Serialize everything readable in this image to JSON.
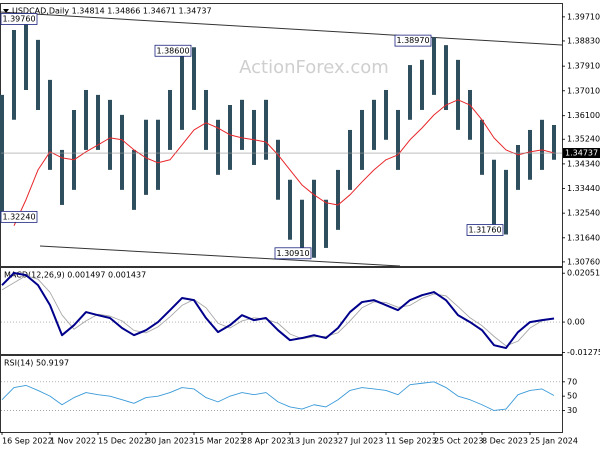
{
  "chart_data": [
    {
      "type": "ohlc",
      "title": "USDCAD,Daily 1.34814 1.34866 1.34671 1.34737",
      "watermark": "ActionForex.com",
      "color": "#2f4f5f",
      "high": [
        1.3686,
        1.3923,
        1.3976,
        1.3887,
        1.3741,
        1.3485,
        1.3631,
        1.3704,
        1.3686,
        1.3668,
        1.3613,
        1.3485,
        1.3595,
        1.3595,
        1.3704,
        1.3832,
        1.386,
        1.3704,
        1.3595,
        1.3649,
        1.3668,
        1.3631,
        1.3668,
        1.3522,
        1.3376,
        1.3303,
        1.3376,
        1.3303,
        1.3412,
        1.3558,
        1.3631,
        1.3668,
        1.3704,
        1.3631,
        1.3795,
        1.3814,
        1.3897,
        1.3868,
        1.3814,
        1.3704,
        1.3595,
        1.3449,
        1.3412,
        1.3503,
        1.3558,
        1.3595,
        1.3576
      ],
      "low": [
        1.3224,
        1.3595,
        1.3704,
        1.3631,
        1.3412,
        1.3284,
        1.3339,
        1.3485,
        1.3485,
        1.3412,
        1.3339,
        1.3266,
        1.3321,
        1.3339,
        1.3485,
        1.3558,
        1.3631,
        1.3485,
        1.3394,
        1.3412,
        1.3485,
        1.343,
        1.3449,
        1.3303,
        1.3157,
        1.3102,
        1.3091,
        1.3127,
        1.3193,
        1.3339,
        1.3412,
        1.3485,
        1.3522,
        1.3412,
        1.3595,
        1.3631,
        1.3686,
        1.3631,
        1.3558,
        1.3522,
        1.3394,
        1.3211,
        1.3176,
        1.3339,
        1.3376,
        1.3412,
        1.3449
      ],
      "series": [
        {
          "color": "#e8262a",
          "values": [
            null,
            1.3208,
            1.3303,
            1.3412,
            1.3478,
            1.3456,
            1.3449,
            1.3478,
            1.3503,
            1.3529,
            1.3522,
            1.3485,
            1.3456,
            1.3438,
            1.3449,
            1.3503,
            1.3558,
            1.3584,
            1.3565,
            1.354,
            1.3529,
            1.3522,
            1.3514,
            1.3467,
            1.3412,
            1.3357,
            1.3321,
            1.3292,
            1.3284,
            1.3321,
            1.3368,
            1.3412,
            1.3449,
            1.3467,
            1.3522,
            1.3565,
            1.3613,
            1.3649,
            1.3668,
            1.3649,
            1.3595,
            1.3529,
            1.3485,
            1.3467,
            1.3478,
            1.3485,
            1.3474
          ]
        }
      ],
      "last": {
        "value": 1.34737,
        "label": "1.34737"
      },
      "annotations": [
        {
          "value": 1.3976,
          "label": "1.39760"
        },
        {
          "value": 1.386,
          "label": "1.38600"
        },
        {
          "value": 1.3897,
          "label": "1.38970"
        },
        {
          "value": 1.3224,
          "label": "1.32240"
        },
        {
          "value": 1.3091,
          "label": "1.30910"
        },
        {
          "value": 1.3176,
          "label": "1.31760"
        }
      ],
      "ylim": [
        1.3061,
        1.4018
      ],
      "yticks": [
        {
          "value": 1.3971,
          "label": "1.39710"
        },
        {
          "value": 1.3883,
          "label": "1.38830"
        },
        {
          "value": 1.3791,
          "label": "1.37910"
        },
        {
          "value": 1.3701,
          "label": "1.37010"
        },
        {
          "value": 1.361,
          "label": "1.36100"
        },
        {
          "value": 1.3524,
          "label": "1.35240"
        },
        {
          "value": 1.3434,
          "label": "1.34340"
        },
        {
          "value": 1.3344,
          "label": "1.33440"
        },
        {
          "value": 1.3254,
          "label": "1.32540"
        },
        {
          "value": 1.3164,
          "label": "1.31640"
        },
        {
          "value": 1.3076,
          "label": "1.30760"
        }
      ]
    },
    {
      "type": "line",
      "title": "MACD(12,26,9) 0.001497 0.001437",
      "series": [
        {
          "color": "#00008b",
          "values": [
            0.0155,
            0.0206,
            0.0197,
            0.0155,
            0.0071,
            -0.0055,
            -0.0013,
            0.0042,
            0.0029,
            0.0017,
            -0.0025,
            -0.0055,
            -0.0034,
            0,
            0.005,
            0.0101,
            0.0092,
            0.0017,
            -0.0042,
            -0.0013,
            0.0029,
            0.0008,
            0.0017,
            -0.0034,
            -0.0076,
            -0.0067,
            -0.0055,
            -0.0067,
            -0.0025,
            0.0042,
            0.0084,
            0.0092,
            0.0071,
            0.005,
            0.0092,
            0.0113,
            0.0126,
            0.0092,
            0.0029,
            0,
            -0.0034,
            -0.0097,
            -0.0109,
            -0.0042,
            0,
            0.0008,
            0.001497
          ]
        },
        {
          "color": "#a8a8a8",
          "values": [
            0.0135,
            0.0165,
            0.0195,
            0.018,
            0.0125,
            0.003,
            -0.003,
            0.0005,
            0.0033,
            0.0025,
            0.0005,
            -0.0035,
            -0.0045,
            -0.002,
            0.0022,
            0.007,
            0.0095,
            0.006,
            -0.0005,
            -0.0025,
            0.0005,
            0.0018,
            0.0012,
            -0.0005,
            -0.005,
            -0.007,
            -0.0062,
            -0.006,
            -0.0045,
            0.0005,
            0.006,
            0.0085,
            0.0082,
            0.0062,
            0.007,
            0.01,
            0.0118,
            0.011,
            0.0065,
            0.0018,
            -0.0015,
            -0.006,
            -0.01,
            -0.008,
            -0.0025,
            0.0005,
            0.001437
          ]
        }
      ],
      "ylim": [
        -0.0134,
        0.0227
      ],
      "yticks": [
        0.020518,
        {
          "value": 0,
          "label": "0.00"
        },
        -0.012755
      ],
      "levels": [
        0
      ]
    },
    {
      "type": "line",
      "title": "RSI(14) 50.9197",
      "series": [
        {
          "color": "#3a9ad9",
          "values": [
            45,
            62,
            65,
            58,
            50,
            38,
            48,
            55,
            52,
            50,
            45,
            40,
            48,
            50,
            55,
            62,
            60,
            48,
            42,
            50,
            55,
            52,
            55,
            42,
            35,
            32,
            38,
            35,
            45,
            58,
            62,
            60,
            58,
            52,
            66,
            68,
            70,
            62,
            50,
            45,
            38,
            30,
            32,
            52,
            58,
            60,
            50.9197
          ]
        }
      ],
      "ylim": [
        0,
        106
      ],
      "yticks": [
        70,
        50,
        30
      ],
      "levels": [
        70,
        30
      ],
      "categories": [
        "16 Sep 2022",
        null,
        null,
        null,
        "1 Nov 2022",
        null,
        null,
        null,
        "15 Dec 2022",
        null,
        null,
        null,
        "30 Jan 2023",
        null,
        null,
        null,
        "15 Mar 2023",
        null,
        null,
        null,
        "28 Apr 2023",
        null,
        null,
        null,
        "13 Jun 2023",
        null,
        null,
        null,
        "27 Jul 2023",
        null,
        null,
        null,
        "11 Sep 2023",
        null,
        null,
        null,
        "25 Oct 2023",
        null,
        null,
        null,
        "8 Dec 2023",
        null,
        null,
        null,
        "25 Jan 2024",
        null,
        null
      ]
    }
  ]
}
